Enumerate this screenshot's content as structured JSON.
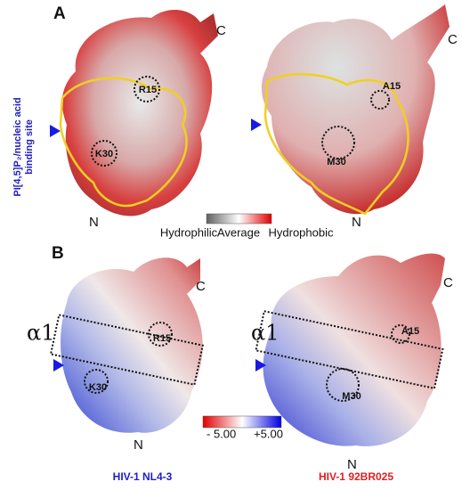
{
  "panel_a": {
    "label": "A",
    "side_label": [
      "PI[4,5]P₂/nucleic acid",
      "binding site"
    ],
    "left": {
      "c_term": "C",
      "n_term": "N",
      "residues": [
        "R15",
        "K30"
      ]
    },
    "right": {
      "c_term": "C",
      "n_term": "N",
      "residues": [
        "A15",
        "M30"
      ]
    },
    "legend": {
      "left": "Hydrophilic",
      "middle": "Average",
      "right": "Hydrophobic"
    }
  },
  "panel_b": {
    "label": "B",
    "left": {
      "c_term": "C",
      "n_term": "N",
      "helix": "α1",
      "residues": [
        "R15",
        "K30"
      ],
      "caption": "HIV-1 NL4-3"
    },
    "right": {
      "c_term": "C",
      "n_term": "N",
      "helix": "α1",
      "residues": [
        "A15",
        "M30"
      ],
      "caption": "HIV-1 92BR025"
    },
    "legend": {
      "min": "- 5.00",
      "max": "+5.00"
    }
  }
}
